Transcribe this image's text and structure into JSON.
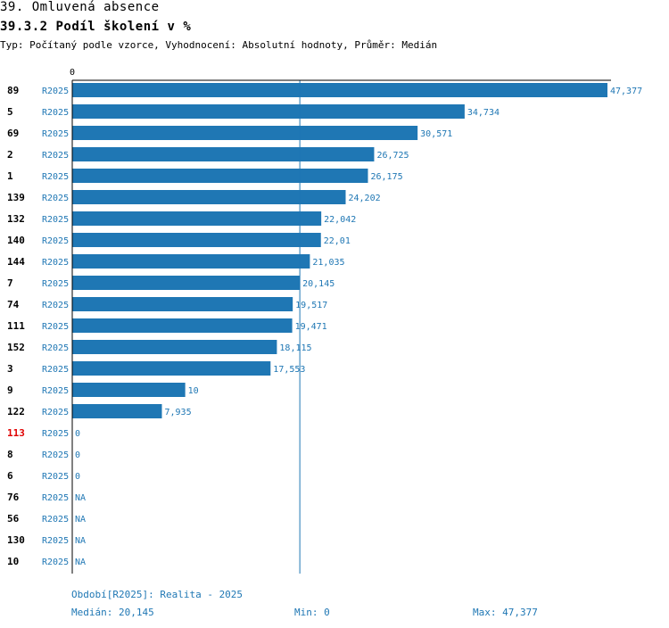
{
  "header": {
    "title": "39. Omluvená absence",
    "subtitle": "39.3.2 Podíl školení v %",
    "meta": "Typ: Počítaný podle vzorce, Vyhodnocení: Absolutní hodnoty, Průměr: Medián"
  },
  "chart_data": {
    "type": "bar",
    "orientation": "horizontal",
    "axis_zero_label": "0",
    "xlim": [
      0,
      47.377
    ],
    "median_line": 20.145,
    "series_label": "R2025",
    "colors": {
      "bar": "#1f77b4",
      "text": "#1f77b4",
      "highlight": "#e00000",
      "label": "#000000"
    },
    "rows": [
      {
        "id": "89",
        "period": "R2025",
        "value": 47.377,
        "label": "47,377",
        "highlight": false
      },
      {
        "id": "5",
        "period": "R2025",
        "value": 34.734,
        "label": "34,734",
        "highlight": false
      },
      {
        "id": "69",
        "period": "R2025",
        "value": 30.571,
        "label": "30,571",
        "highlight": false
      },
      {
        "id": "2",
        "period": "R2025",
        "value": 26.725,
        "label": "26,725",
        "highlight": false
      },
      {
        "id": "1",
        "period": "R2025",
        "value": 26.175,
        "label": "26,175",
        "highlight": false
      },
      {
        "id": "139",
        "period": "R2025",
        "value": 24.202,
        "label": "24,202",
        "highlight": false
      },
      {
        "id": "132",
        "period": "R2025",
        "value": 22.042,
        "label": "22,042",
        "highlight": false
      },
      {
        "id": "140",
        "period": "R2025",
        "value": 22.01,
        "label": "22,01",
        "highlight": false
      },
      {
        "id": "144",
        "period": "R2025",
        "value": 21.035,
        "label": "21,035",
        "highlight": false
      },
      {
        "id": "7",
        "period": "R2025",
        "value": 20.145,
        "label": "20,145",
        "highlight": false
      },
      {
        "id": "74",
        "period": "R2025",
        "value": 19.517,
        "label": "19,517",
        "highlight": false
      },
      {
        "id": "111",
        "period": "R2025",
        "value": 19.471,
        "label": "19,471",
        "highlight": false
      },
      {
        "id": "152",
        "period": "R2025",
        "value": 18.115,
        "label": "18,115",
        "highlight": false
      },
      {
        "id": "3",
        "period": "R2025",
        "value": 17.553,
        "label": "17,553",
        "highlight": false
      },
      {
        "id": "9",
        "period": "R2025",
        "value": 10,
        "label": "10",
        "highlight": false
      },
      {
        "id": "122",
        "period": "R2025",
        "value": 7.935,
        "label": "7,935",
        "highlight": false
      },
      {
        "id": "113",
        "period": "R2025",
        "value": 0,
        "label": "0",
        "highlight": true
      },
      {
        "id": "8",
        "period": "R2025",
        "value": 0,
        "label": "0",
        "highlight": false
      },
      {
        "id": "6",
        "period": "R2025",
        "value": 0,
        "label": "0",
        "highlight": false
      },
      {
        "id": "76",
        "period": "R2025",
        "value": null,
        "label": "NA",
        "highlight": false
      },
      {
        "id": "56",
        "period": "R2025",
        "value": null,
        "label": "NA",
        "highlight": false
      },
      {
        "id": "130",
        "period": "R2025",
        "value": null,
        "label": "NA",
        "highlight": false
      },
      {
        "id": "10",
        "period": "R2025",
        "value": null,
        "label": "NA",
        "highlight": false
      }
    ]
  },
  "footer": {
    "period": "Období[R2025]: Realita - 2025",
    "median": "Medián: 20,145",
    "min": "Min: 0",
    "max": "Max: 47,377"
  }
}
